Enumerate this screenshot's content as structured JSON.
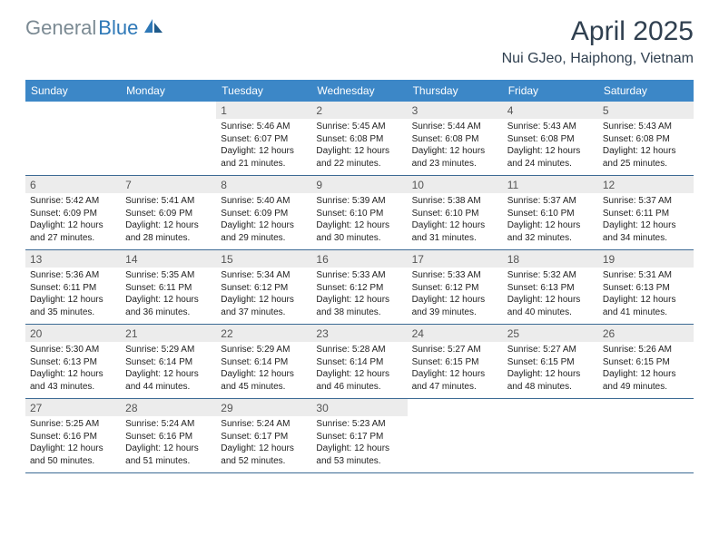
{
  "logo": {
    "part1": "General",
    "part2": "Blue"
  },
  "header": {
    "title": "April 2025",
    "location": "Nui GJeo, Haiphong, Vietnam"
  },
  "colors": {
    "header_bg": "#3c87c7",
    "header_text": "#ffffff",
    "daynum_bg": "#ececec",
    "week_divider": "#3c6a94",
    "logo_general": "#7b8a93",
    "logo_blue": "#2e78b7",
    "title_color": "#304050"
  },
  "dayNames": [
    "Sunday",
    "Monday",
    "Tuesday",
    "Wednesday",
    "Thursday",
    "Friday",
    "Saturday"
  ],
  "grid": {
    "startOffset": 2,
    "daysInMonth": 30
  },
  "days": {
    "1": {
      "sunrise": "5:46 AM",
      "sunset": "6:07 PM",
      "daylight": "12 hours and 21 minutes."
    },
    "2": {
      "sunrise": "5:45 AM",
      "sunset": "6:08 PM",
      "daylight": "12 hours and 22 minutes."
    },
    "3": {
      "sunrise": "5:44 AM",
      "sunset": "6:08 PM",
      "daylight": "12 hours and 23 minutes."
    },
    "4": {
      "sunrise": "5:43 AM",
      "sunset": "6:08 PM",
      "daylight": "12 hours and 24 minutes."
    },
    "5": {
      "sunrise": "5:43 AM",
      "sunset": "6:08 PM",
      "daylight": "12 hours and 25 minutes."
    },
    "6": {
      "sunrise": "5:42 AM",
      "sunset": "6:09 PM",
      "daylight": "12 hours and 27 minutes."
    },
    "7": {
      "sunrise": "5:41 AM",
      "sunset": "6:09 PM",
      "daylight": "12 hours and 28 minutes."
    },
    "8": {
      "sunrise": "5:40 AM",
      "sunset": "6:09 PM",
      "daylight": "12 hours and 29 minutes."
    },
    "9": {
      "sunrise": "5:39 AM",
      "sunset": "6:10 PM",
      "daylight": "12 hours and 30 minutes."
    },
    "10": {
      "sunrise": "5:38 AM",
      "sunset": "6:10 PM",
      "daylight": "12 hours and 31 minutes."
    },
    "11": {
      "sunrise": "5:37 AM",
      "sunset": "6:10 PM",
      "daylight": "12 hours and 32 minutes."
    },
    "12": {
      "sunrise": "5:37 AM",
      "sunset": "6:11 PM",
      "daylight": "12 hours and 34 minutes."
    },
    "13": {
      "sunrise": "5:36 AM",
      "sunset": "6:11 PM",
      "daylight": "12 hours and 35 minutes."
    },
    "14": {
      "sunrise": "5:35 AM",
      "sunset": "6:11 PM",
      "daylight": "12 hours and 36 minutes."
    },
    "15": {
      "sunrise": "5:34 AM",
      "sunset": "6:12 PM",
      "daylight": "12 hours and 37 minutes."
    },
    "16": {
      "sunrise": "5:33 AM",
      "sunset": "6:12 PM",
      "daylight": "12 hours and 38 minutes."
    },
    "17": {
      "sunrise": "5:33 AM",
      "sunset": "6:12 PM",
      "daylight": "12 hours and 39 minutes."
    },
    "18": {
      "sunrise": "5:32 AM",
      "sunset": "6:13 PM",
      "daylight": "12 hours and 40 minutes."
    },
    "19": {
      "sunrise": "5:31 AM",
      "sunset": "6:13 PM",
      "daylight": "12 hours and 41 minutes."
    },
    "20": {
      "sunrise": "5:30 AM",
      "sunset": "6:13 PM",
      "daylight": "12 hours and 43 minutes."
    },
    "21": {
      "sunrise": "5:29 AM",
      "sunset": "6:14 PM",
      "daylight": "12 hours and 44 minutes."
    },
    "22": {
      "sunrise": "5:29 AM",
      "sunset": "6:14 PM",
      "daylight": "12 hours and 45 minutes."
    },
    "23": {
      "sunrise": "5:28 AM",
      "sunset": "6:14 PM",
      "daylight": "12 hours and 46 minutes."
    },
    "24": {
      "sunrise": "5:27 AM",
      "sunset": "6:15 PM",
      "daylight": "12 hours and 47 minutes."
    },
    "25": {
      "sunrise": "5:27 AM",
      "sunset": "6:15 PM",
      "daylight": "12 hours and 48 minutes."
    },
    "26": {
      "sunrise": "5:26 AM",
      "sunset": "6:15 PM",
      "daylight": "12 hours and 49 minutes."
    },
    "27": {
      "sunrise": "5:25 AM",
      "sunset": "6:16 PM",
      "daylight": "12 hours and 50 minutes."
    },
    "28": {
      "sunrise": "5:24 AM",
      "sunset": "6:16 PM",
      "daylight": "12 hours and 51 minutes."
    },
    "29": {
      "sunrise": "5:24 AM",
      "sunset": "6:17 PM",
      "daylight": "12 hours and 52 minutes."
    },
    "30": {
      "sunrise": "5:23 AM",
      "sunset": "6:17 PM",
      "daylight": "12 hours and 53 minutes."
    }
  },
  "labels": {
    "sunrise": "Sunrise:",
    "sunset": "Sunset:",
    "daylight": "Daylight:"
  }
}
